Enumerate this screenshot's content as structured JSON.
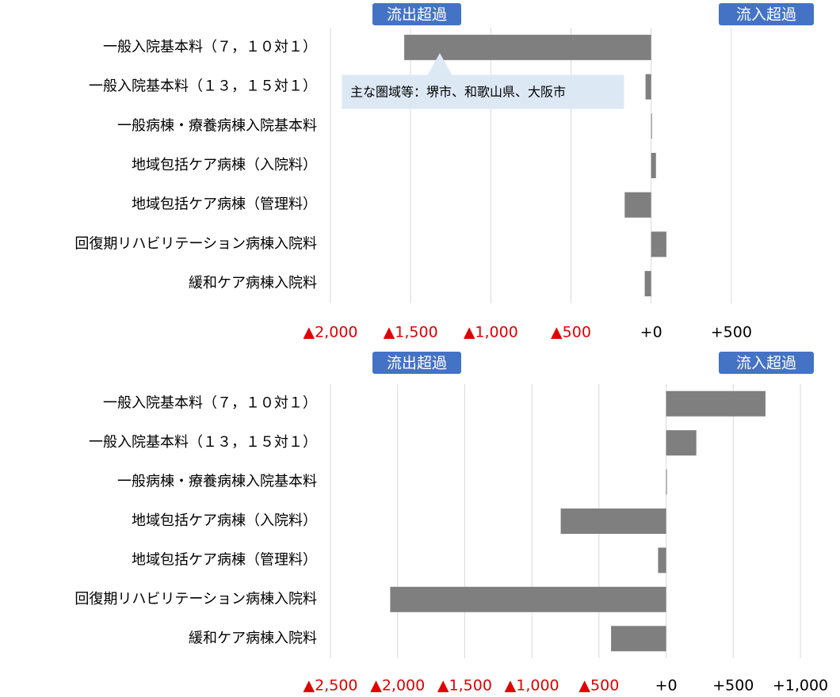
{
  "chart_data": [
    {
      "type": "bar",
      "orientation": "horizontal",
      "color": "#7f7f7f",
      "negative_tick_color": "#e00000",
      "outflow_label": "流出超過",
      "inflow_label": "流入超過",
      "annotation": "主な圏域等：堺市、和歌山県、大阪市",
      "categories": [
        "一般入院基本料（７，１０対１）",
        "一般入院基本料（１３，１５対１）",
        "一般病棟・療養病棟入院基本料",
        "地域包括ケア病棟（入院料）",
        "地域包括ケア病棟（管理料）",
        "回復期リハビリテーション病棟入院料",
        "緩和ケア病棟入院料"
      ],
      "values": [
        -1540,
        -35,
        0,
        30,
        -165,
        95,
        -40
      ],
      "xlim": [
        -2000,
        1000
      ],
      "xticks": [
        {
          "value": -2000,
          "label": "▲2,000"
        },
        {
          "value": -1500,
          "label": "▲1,500"
        },
        {
          "value": -1000,
          "label": "▲1,000"
        },
        {
          "value": -500,
          "label": "▲500"
        },
        {
          "value": 0,
          "label": "+0"
        },
        {
          "value": 500,
          "label": "+500"
        }
      ],
      "grid": true
    },
    {
      "type": "bar",
      "orientation": "horizontal",
      "color": "#7f7f7f",
      "negative_tick_color": "#e00000",
      "outflow_label": "流出超過",
      "inflow_label": "流入超過",
      "categories": [
        "一般入院基本料（７，１０対１）",
        "一般入院基本料（１３，１５対１）",
        "一般病棟・療養病棟入院基本料",
        "地域包括ケア病棟（入院料）",
        "地域包括ケア病棟（管理料）",
        "回復期リハビリテーション病棟入院料",
        "緩和ケア病棟入院料"
      ],
      "values": [
        740,
        225,
        0,
        -785,
        -60,
        -2055,
        -410
      ],
      "xlim": [
        -2500,
        1000
      ],
      "xticks": [
        {
          "value": -2500,
          "label": "▲2,500"
        },
        {
          "value": -2000,
          "label": "▲2,000"
        },
        {
          "value": -1500,
          "label": "▲1,500"
        },
        {
          "value": -1000,
          "label": "▲1,000"
        },
        {
          "value": -500,
          "label": "▲500"
        },
        {
          "value": 0,
          "label": "+0"
        },
        {
          "value": 500,
          "label": "+500"
        },
        {
          "value": 1000,
          "label": "+1,000"
        }
      ],
      "grid": true
    }
  ]
}
